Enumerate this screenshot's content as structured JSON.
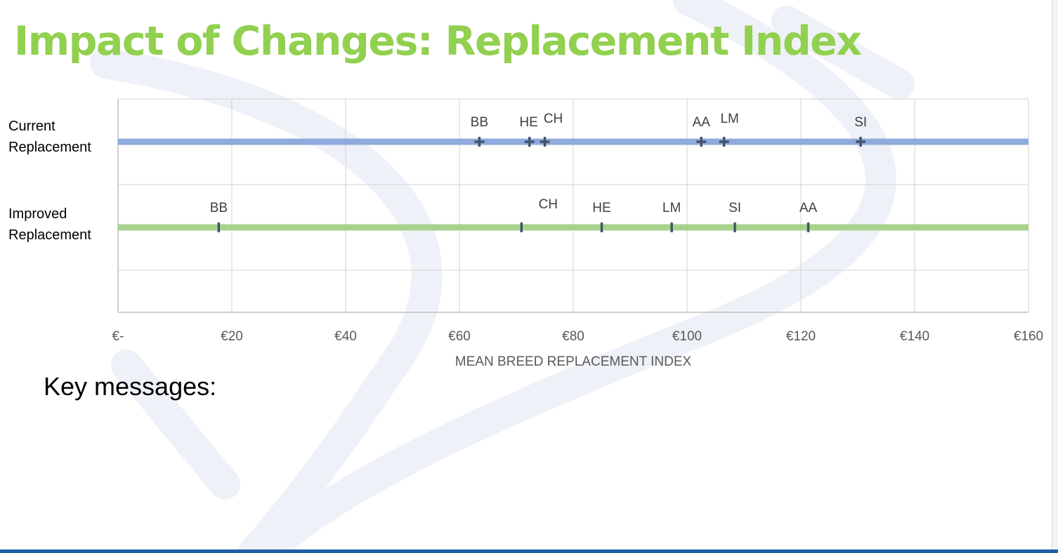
{
  "slide": {
    "title": "Impact of Changes: Replacement Index",
    "key_messages_label": "Key messages:"
  },
  "colors": {
    "title": "#92d050",
    "current_series": "#8faadc",
    "improved_series": "#a9d18e",
    "marker": "#44546a",
    "grid": "#d9d9d9",
    "watermark": "#e8ecf5"
  },
  "chart_data": {
    "type": "scatter",
    "title": "",
    "xlabel": "MEAN BREED REPLACEMENT INDEX",
    "ylabel": "",
    "xlim": [
      0,
      160
    ],
    "x_ticks": [
      0,
      20,
      40,
      60,
      80,
      100,
      120,
      140,
      160
    ],
    "x_tick_labels": [
      "€-",
      "€20",
      "€40",
      "€60",
      "€80",
      "€100",
      "€120",
      "€140",
      "€160"
    ],
    "grid": true,
    "legend": "none",
    "categories": [
      "Current Replacement",
      "Improved Replacement"
    ],
    "series": [
      {
        "name": "Current Replacement",
        "points": [
          {
            "label": "BB",
            "x": 63.5
          },
          {
            "label": "HE",
            "x": 72.3
          },
          {
            "label": "CH",
            "x": 75.0
          },
          {
            "label": "AA",
            "x": 102.5
          },
          {
            "label": "LM",
            "x": 106.5
          },
          {
            "label": "SI",
            "x": 130.5
          }
        ]
      },
      {
        "name": "Improved Replacement",
        "points": [
          {
            "label": "BB",
            "x": 17.7
          },
          {
            "label": "CH",
            "x": 70.9
          },
          {
            "label": "HE",
            "x": 85.0
          },
          {
            "label": "LM",
            "x": 97.3
          },
          {
            "label": "SI",
            "x": 108.4
          },
          {
            "label": "AA",
            "x": 121.3
          }
        ]
      }
    ]
  }
}
